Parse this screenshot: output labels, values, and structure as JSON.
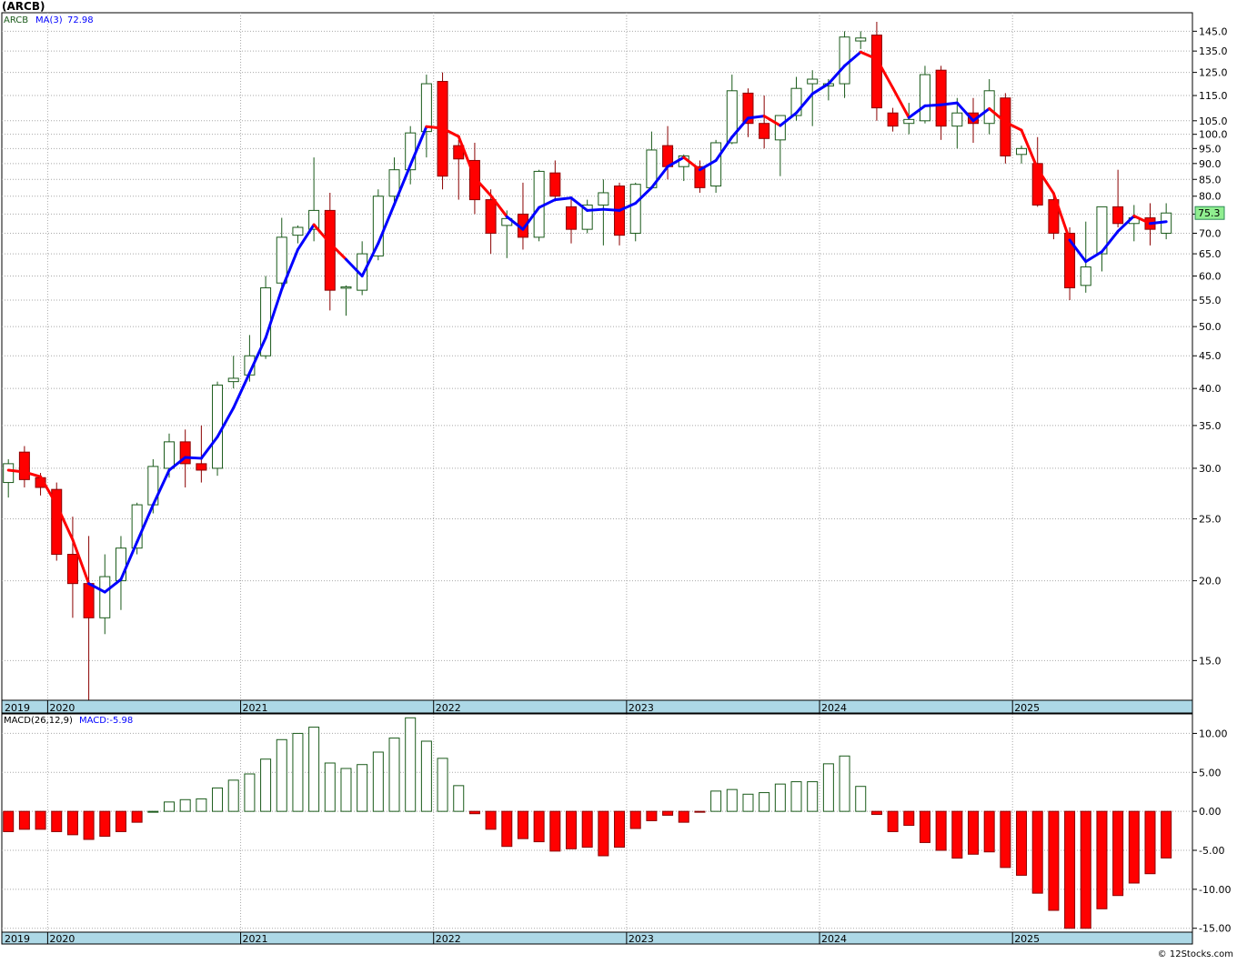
{
  "title": "(ARCB)",
  "footer": "© 12Stocks.com",
  "colors": {
    "up": "#1a5a1a",
    "down": "#ff0000",
    "ma_up": "#0000ff",
    "ma_down": "#ff0000",
    "axis_band": "#add8e6",
    "grid": "#a9a9a9"
  },
  "legend": {
    "symbol": "ARCB",
    "ma_label": "MA(3)",
    "ma_value": "72.98",
    "last_price": "75.3",
    "macd_label": "MACD(26,12,9)",
    "macd_value": "MACD:-5.98"
  },
  "chart_data": [
    {
      "type": "candlestick",
      "scale": "log",
      "ylim": [
        13,
        155
      ],
      "y_ticks": [
        15.0,
        20.0,
        25.0,
        30.0,
        35.0,
        40.0,
        45.0,
        50.0,
        55.0,
        60.0,
        65.0,
        70.0,
        75.0,
        80.0,
        85.0,
        90.0,
        95.0,
        100.0,
        105.0,
        115.0,
        125.0,
        135.0,
        145.0
      ],
      "x_year_labels": [
        "2019",
        "2020",
        "2021",
        "2022",
        "2023",
        "2024",
        "2025"
      ],
      "x_year_start_index": [
        0,
        3,
        15,
        27,
        39,
        51,
        63
      ],
      "grid": true,
      "ohlc": [
        [
          28.5,
          31.0,
          27.0,
          30.5
        ],
        [
          31.8,
          32.5,
          28.0,
          28.8
        ],
        [
          29.0,
          29.5,
          27.2,
          28.0
        ],
        [
          27.8,
          28.5,
          21.5,
          22.0
        ],
        [
          22.0,
          25.2,
          17.5,
          19.8
        ],
        [
          19.8,
          23.5,
          13.0,
          17.5
        ],
        [
          17.5,
          22.0,
          16.5,
          20.3
        ],
        [
          20.0,
          23.5,
          18.0,
          22.5
        ],
        [
          22.5,
          26.5,
          22.0,
          26.3
        ],
        [
          26.3,
          31.0,
          25.5,
          30.2
        ],
        [
          30.0,
          34.0,
          29.0,
          33.0
        ],
        [
          33.0,
          34.5,
          28.0,
          30.5
        ],
        [
          30.5,
          35.0,
          28.5,
          29.8
        ],
        [
          30.0,
          41.0,
          29.2,
          40.5
        ],
        [
          41.0,
          45.0,
          40.0,
          41.5
        ],
        [
          42.0,
          48.5,
          41.0,
          45.0
        ],
        [
          45.0,
          60.0,
          44.5,
          57.5
        ],
        [
          58.5,
          74.0,
          57.0,
          69.0
        ],
        [
          69.5,
          72.0,
          67.5,
          71.5
        ],
        [
          71.0,
          92.0,
          68.0,
          76.0
        ],
        [
          76.0,
          81.0,
          53.0,
          57.0
        ],
        [
          57.5,
          58.0,
          52.0,
          57.7
        ],
        [
          57.0,
          68.0,
          56.0,
          65.0
        ],
        [
          64.5,
          82.0,
          63.5,
          80.0
        ],
        [
          80.0,
          92.0,
          78.0,
          88.0
        ],
        [
          88.0,
          103.0,
          83.5,
          100.5
        ],
        [
          101.0,
          124.0,
          92.0,
          120.0
        ],
        [
          121.0,
          125.0,
          82.0,
          86.0
        ],
        [
          96.0,
          98.0,
          79.0,
          91.5
        ],
        [
          91.0,
          97.0,
          75.0,
          79.0
        ],
        [
          79.0,
          82.0,
          65.0,
          70.0
        ],
        [
          72.0,
          76.0,
          64.0,
          73.8
        ],
        [
          75.0,
          84.0,
          66.0,
          69.0
        ],
        [
          69.0,
          88.0,
          68.0,
          87.5
        ],
        [
          87.0,
          91.0,
          78.5,
          80.0
        ],
        [
          77.0,
          80.0,
          67.5,
          71.0
        ],
        [
          71.0,
          79.0,
          70.0,
          77.5
        ],
        [
          77.5,
          85.0,
          67.0,
          81.0
        ],
        [
          83.0,
          84.0,
          67.0,
          69.5
        ],
        [
          70.0,
          84.0,
          68.0,
          83.5
        ],
        [
          82.5,
          101.0,
          82.0,
          94.5
        ],
        [
          96.0,
          103.0,
          85.0,
          89.0
        ],
        [
          89.0,
          93.0,
          84.5,
          92.5
        ],
        [
          89.0,
          91.0,
          81.0,
          82.5
        ],
        [
          83.0,
          98.0,
          81.0,
          97.0
        ],
        [
          97.0,
          124.0,
          96.5,
          117.0
        ],
        [
          116.0,
          118.0,
          99.0,
          104.0
        ],
        [
          104.0,
          115.0,
          95.0,
          98.5
        ],
        [
          98.0,
          107.0,
          86.0,
          107.0
        ],
        [
          107.0,
          123.0,
          105.0,
          118.0
        ],
        [
          120.0,
          126.0,
          103.0,
          122.0
        ],
        [
          119.0,
          122.0,
          113.0,
          120.0
        ],
        [
          120.0,
          145.0,
          114.0,
          142.0
        ],
        [
          140.0,
          145.0,
          136.0,
          141.5
        ],
        [
          143.0,
          150.0,
          105.0,
          110.0
        ],
        [
          108.0,
          110.0,
          101.0,
          103.0
        ],
        [
          104.0,
          112.0,
          100.0,
          105.5
        ],
        [
          105.0,
          128.0,
          104.0,
          124.0
        ],
        [
          126.0,
          128.0,
          98.0,
          103.0
        ],
        [
          103.0,
          114.0,
          95.0,
          108.0
        ],
        [
          108.0,
          114.0,
          97.0,
          104.0
        ],
        [
          104.0,
          122.0,
          100.0,
          117.0
        ],
        [
          114.0,
          116.0,
          90.0,
          92.5
        ],
        [
          93.0,
          96.0,
          90.0,
          95.0
        ],
        [
          90.0,
          99.0,
          77.0,
          77.5
        ],
        [
          79.0,
          80.0,
          68.5,
          70.0
        ],
        [
          70.0,
          71.5,
          55.0,
          57.5
        ],
        [
          58.0,
          73.0,
          56.5,
          62.0
        ],
        [
          65.0,
          77.0,
          61.0,
          77.0
        ],
        [
          77.0,
          88.0,
          71.5,
          72.5
        ],
        [
          72.5,
          77.5,
          68.0,
          74.0
        ],
        [
          74.0,
          78.0,
          67.0,
          71.0
        ],
        [
          70.0,
          78.0,
          68.5,
          75.3
        ]
      ],
      "ma3": [
        29.8,
        29.6,
        29.1,
        26.3,
        23.2,
        19.8,
        19.2,
        20.1,
        23.0,
        26.3,
        29.8,
        31.2,
        31.1,
        33.6,
        37.3,
        42.3,
        48.0,
        57.2,
        66.0,
        72.2,
        67.5,
        63.7,
        60.0,
        67.5,
        77.7,
        89.5,
        102.8,
        102.2,
        99.2,
        85.5,
        80.2,
        74.3,
        71.0,
        76.8,
        79.0,
        79.5,
        76.0,
        76.3,
        76.0,
        78.0,
        82.5,
        89.0,
        92.0,
        88.0,
        91.0,
        99.0,
        106.0,
        106.8,
        103.2,
        108.0,
        115.7,
        120.0,
        128.0,
        134.5,
        131.2,
        118.2,
        106.2,
        110.8,
        111.2,
        112.0,
        105.0,
        109.7,
        104.5,
        101.5,
        88.3,
        80.8,
        68.3,
        63.2,
        65.5,
        70.5,
        74.5,
        72.5,
        72.98
      ],
      "ma_color_flags": [
        "d",
        "d",
        "d",
        "d",
        "d",
        "d",
        "u",
        "u",
        "u",
        "u",
        "u",
        "u",
        "u",
        "u",
        "u",
        "u",
        "u",
        "u",
        "u",
        "u",
        "d",
        "d",
        "u",
        "u",
        "u",
        "u",
        "u",
        "d",
        "d",
        "d",
        "d",
        "d",
        "u",
        "u",
        "u",
        "u",
        "u",
        "u",
        "u",
        "u",
        "u",
        "u",
        "u",
        "d",
        "u",
        "u",
        "u",
        "u",
        "d",
        "u",
        "u",
        "u",
        "u",
        "u",
        "d",
        "d",
        "d",
        "u",
        "u",
        "u",
        "u",
        "u",
        "d",
        "d",
        "d",
        "d",
        "d",
        "u",
        "u",
        "u",
        "u",
        "d",
        "u"
      ]
    },
    {
      "type": "bar",
      "name": "MACD",
      "ylim": [
        -15.5,
        12.5
      ],
      "y_ticks": [
        10.0,
        5.0,
        0.0,
        -5.0,
        -10.0,
        -15.0
      ],
      "x_year_labels": [
        "2019",
        "2020",
        "2021",
        "2022",
        "2023",
        "2024",
        "2025"
      ],
      "values": [
        -2.6,
        -2.3,
        -2.3,
        -2.6,
        -3.0,
        -3.6,
        -3.2,
        -2.6,
        -1.4,
        0.0,
        1.2,
        1.5,
        1.6,
        3.0,
        4.0,
        4.8,
        6.7,
        9.2,
        10.0,
        10.8,
        6.2,
        5.5,
        6.0,
        7.6,
        9.4,
        12.0,
        9.0,
        6.8,
        3.3,
        -0.3,
        -2.3,
        -4.5,
        -3.5,
        -3.9,
        -5.1,
        -4.8,
        -4.6,
        -5.7,
        -4.6,
        -2.2,
        -1.2,
        -0.5,
        -1.4,
        -0.1,
        2.6,
        2.8,
        2.2,
        2.4,
        3.5,
        3.8,
        3.8,
        6.1,
        7.1,
        3.2,
        -0.4,
        -2.6,
        -1.8,
        -4.0,
        -5.0,
        -6.0,
        -5.5,
        -5.2,
        -7.2,
        -8.2,
        -10.5,
        -12.7,
        -15.0,
        -15.0,
        -12.5,
        -10.8,
        -9.2,
        -8.0,
        -5.98
      ]
    }
  ]
}
